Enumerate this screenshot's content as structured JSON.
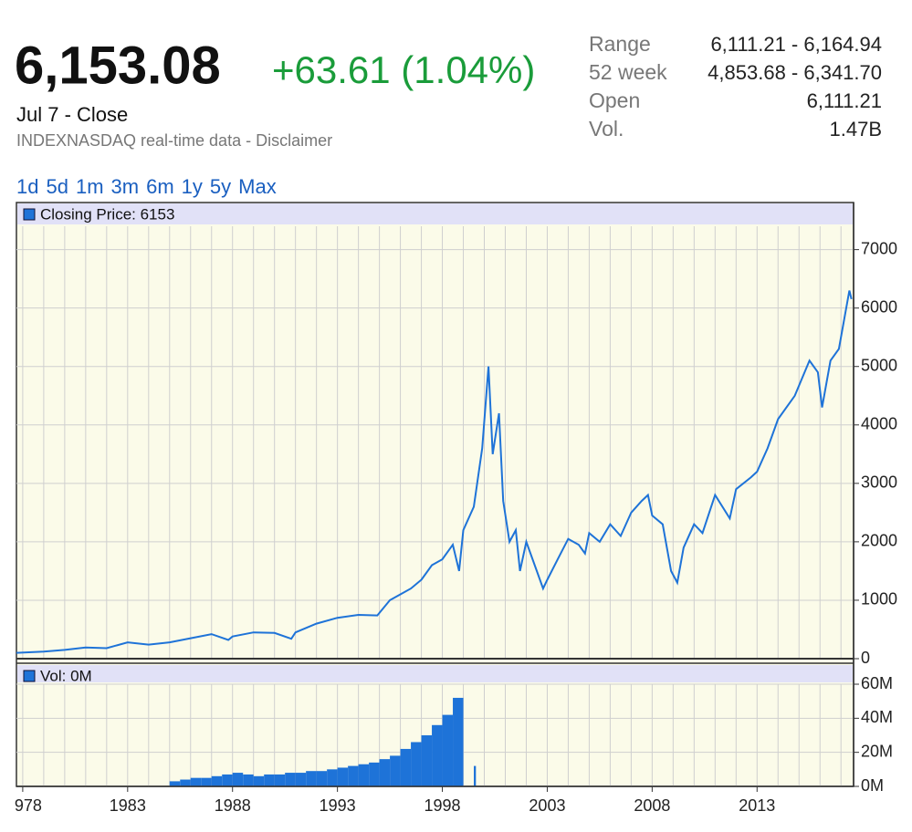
{
  "header": {
    "price": "6,153.08",
    "change": "+63.61 (1.04%)",
    "date": "Jul 7 - Close",
    "source": "INDEXNASDAQ real-time data - Disclaimer"
  },
  "stats": [
    {
      "label": "Range",
      "value": "6,111.21 - 6,164.94"
    },
    {
      "label": "52 week",
      "value": "4,853.68 - 6,341.70"
    },
    {
      "label": "Open",
      "value": "6,111.21"
    },
    {
      "label": "Vol.",
      "value": "1.47B"
    }
  ],
  "ranges": [
    "1d",
    "5d",
    "1m",
    "3m",
    "6m",
    "1y",
    "5y",
    "Max"
  ],
  "chart_data": [
    {
      "type": "line",
      "xlim": [
        1977.7,
        2017.6
      ],
      "ylim": [
        0,
        7400
      ],
      "yticks": [
        0,
        1000,
        2000,
        3000,
        4000,
        5000,
        6000,
        7000
      ],
      "x_grid_step": 1,
      "grid": true,
      "series": [
        {
          "name": "Closing Price: 6153",
          "color": "#1e73d8",
          "x": [
            1977.7,
            1979,
            1980,
            1981,
            1982,
            1983,
            1984,
            1985,
            1986,
            1987,
            1987.8,
            1988,
            1989,
            1990,
            1990.8,
            1991,
            1992,
            1993,
            1994,
            1994.9,
            1995.5,
            1996,
            1996.5,
            1997,
            1997.5,
            1998,
            1998.5,
            1998.8,
            1999,
            1999.5,
            1999.9,
            2000.2,
            2000.4,
            2000.7,
            2000.9,
            2001.2,
            2001.5,
            2001.7,
            2002,
            2002.5,
            2002.8,
            2003,
            2003.5,
            2004,
            2004.5,
            2004.8,
            2005,
            2005.5,
            2006,
            2006.5,
            2007,
            2007.5,
            2007.8,
            2008,
            2008.5,
            2008.9,
            2009.2,
            2009.5,
            2010,
            2010.4,
            2011,
            2011.7,
            2012,
            2012.7,
            2013,
            2013.5,
            2014,
            2014.8,
            2015.5,
            2015.9,
            2016.1,
            2016.5,
            2016.9,
            2017.2,
            2017.4,
            2017.5
          ],
          "values": [
            100,
            120,
            150,
            190,
            180,
            280,
            240,
            280,
            350,
            420,
            320,
            380,
            450,
            440,
            340,
            450,
            600,
            700,
            750,
            740,
            1000,
            1100,
            1200,
            1350,
            1600,
            1700,
            1950,
            1500,
            2200,
            2600,
            3600,
            5000,
            3500,
            4200,
            2700,
            2000,
            2200,
            1500,
            2000,
            1500,
            1200,
            1350,
            1700,
            2050,
            1950,
            1800,
            2150,
            2000,
            2300,
            2100,
            2500,
            2700,
            2800,
            2450,
            2300,
            1500,
            1300,
            1900,
            2300,
            2150,
            2800,
            2400,
            2900,
            3100,
            3200,
            3600,
            4100,
            4500,
            5100,
            4900,
            4300,
            5100,
            5300,
            5900,
            6300,
            6153
          ]
        }
      ]
    },
    {
      "type": "bar",
      "xlim": [
        1977.7,
        2017.6
      ],
      "ylim": [
        0,
        60
      ],
      "yticks": [
        {
          "value": 0,
          "label": "0M"
        },
        {
          "value": 20,
          "label": "20M"
        },
        {
          "value": 40,
          "label": "40M"
        },
        {
          "value": 60,
          "label": "60M"
        }
      ],
      "xticks": [
        {
          "value": 1978,
          "label": "978"
        },
        1983,
        1988,
        1993,
        1998,
        2003,
        2008,
        2013
      ],
      "x_grid_step": 1,
      "series": [
        {
          "name": "Vol: 0M",
          "color": "#1e73d8",
          "x": [
            1985,
            1985.5,
            1986,
            1986.5,
            1987,
            1987.5,
            1988,
            1988.5,
            1989,
            1989.5,
            1990,
            1990.5,
            1991,
            1991.5,
            1992,
            1992.5,
            1993,
            1993.5,
            1994,
            1994.5,
            1995,
            1995.5,
            1996,
            1996.5,
            1997,
            1997.5,
            1998,
            1998.5,
            1999.5
          ],
          "values": [
            3,
            4,
            5,
            5,
            6,
            7,
            8,
            7,
            6,
            7,
            7,
            8,
            8,
            9,
            9,
            10,
            11,
            12,
            13,
            14,
            16,
            18,
            22,
            26,
            30,
            36,
            42,
            52,
            12
          ]
        }
      ]
    }
  ]
}
